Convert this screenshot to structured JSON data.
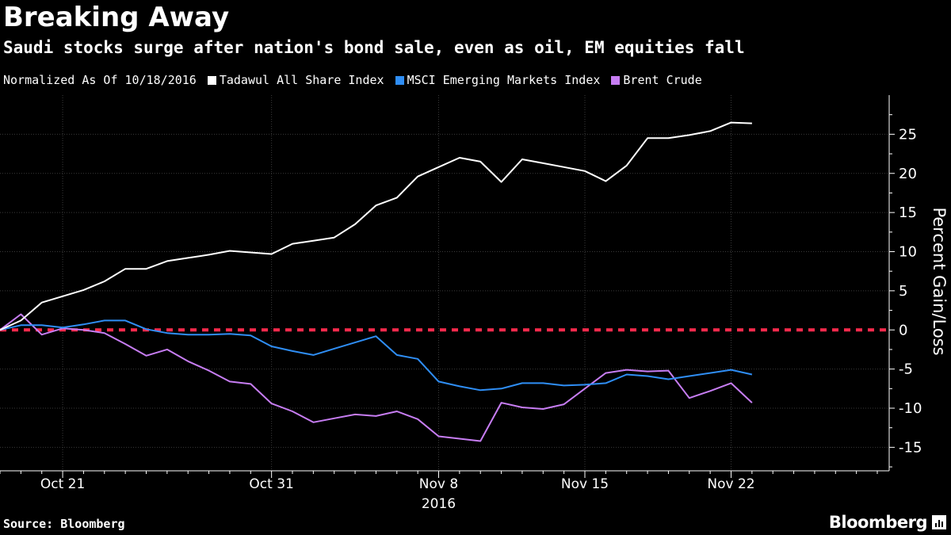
{
  "header": {
    "title": "Breaking Away",
    "subtitle": "Saudi stocks surge after nation's bond sale, even as oil, EM equities fall"
  },
  "legend": {
    "note": "Normalized As Of 10/18/2016",
    "items": [
      {
        "label": "Tadawul All Share Index",
        "color": "#ffffff"
      },
      {
        "label": "MSCI Emerging Markets Index",
        "color": "#2f8ef5"
      },
      {
        "label": "Brent Crude",
        "color": "#c77df3"
      }
    ]
  },
  "footer": {
    "source": "Source: Bloomberg",
    "brand": "Bloomberg"
  },
  "chart_data": {
    "type": "line",
    "title": "Breaking Away",
    "subtitle": "Saudi stocks surge after nation's bond sale, even as oil, EM equities fall",
    "ylabel": "Percent Gain/Loss",
    "xlabel": "",
    "x_year_label": "2016",
    "ylim": [
      -18,
      30
    ],
    "yticks": [
      -15,
      -10,
      -5,
      0,
      5,
      10,
      15,
      20,
      25
    ],
    "ytick_labels": [
      "-15",
      "-10",
      "-5",
      "0",
      "5",
      "10",
      "15",
      "20",
      "25"
    ],
    "xlim": [
      "2016-10-18",
      "2016-11-29"
    ],
    "xticks": [
      "2016-10-21",
      "2016-10-31",
      "2016-11-08",
      "2016-11-15",
      "2016-11-22"
    ],
    "xtick_labels": [
      "Oct 21",
      "Oct 31",
      "Nov 8",
      "Nov 15",
      "Nov 22"
    ],
    "grid": true,
    "legend_position": "top-left",
    "zero_line": {
      "value": 0,
      "color": "#ff2a4d",
      "style": "dashed"
    },
    "x": [
      "2016-10-18",
      "2016-10-19",
      "2016-10-20",
      "2016-10-21",
      "2016-10-22",
      "2016-10-23",
      "2016-10-24",
      "2016-10-25",
      "2016-10-26",
      "2016-10-27",
      "2016-10-28",
      "2016-10-29",
      "2016-10-30",
      "2016-10-31",
      "2016-11-01",
      "2016-11-02",
      "2016-11-03",
      "2016-11-04",
      "2016-11-05",
      "2016-11-06",
      "2016-11-07",
      "2016-11-08",
      "2016-11-09",
      "2016-11-10",
      "2016-11-11",
      "2016-11-12",
      "2016-11-13",
      "2016-11-14",
      "2016-11-15",
      "2016-11-16",
      "2016-11-17",
      "2016-11-18",
      "2016-11-19",
      "2016-11-20",
      "2016-11-21",
      "2016-11-22",
      "2016-11-23",
      "2016-11-24",
      "2016-11-25",
      "2016-11-26",
      "2016-11-27",
      "2016-11-28"
    ],
    "series": [
      {
        "name": "Tadawul All Share Index",
        "color": "#ffffff",
        "values": [
          0,
          1.2,
          3.5,
          4.3,
          5.1,
          6.2,
          7.8,
          7.8,
          8.8,
          9.2,
          9.6,
          10.1,
          9.9,
          9.7,
          11.0,
          11.4,
          11.8,
          13.5,
          15.9,
          16.9,
          19.6,
          20.8,
          22.0,
          21.5,
          18.9,
          21.8,
          21.3,
          20.8,
          20.3,
          19.0,
          21.0,
          24.5,
          24.5,
          24.9,
          25.4,
          26.5,
          26.4,
          null,
          null,
          null,
          null,
          null
        ]
      },
      {
        "name": "MSCI Emerging Markets Index",
        "color": "#2f8ef5",
        "values": [
          0,
          0.6,
          0.6,
          0.3,
          0.7,
          1.2,
          1.2,
          0.1,
          -0.4,
          -0.6,
          -0.6,
          -0.5,
          -0.7,
          -2.1,
          -2.7,
          -3.2,
          -2.4,
          -1.6,
          -0.8,
          -3.2,
          -3.7,
          -6.6,
          -7.2,
          -7.7,
          -7.5,
          -6.8,
          -6.8,
          -7.1,
          -7.0,
          -6.8,
          -5.7,
          -5.9,
          -6.3,
          -5.9,
          -5.5,
          -5.1,
          -5.7,
          null,
          null,
          null,
          null,
          null
        ]
      },
      {
        "name": "Brent Crude",
        "color": "#c77df3",
        "values": [
          0,
          2.0,
          -0.6,
          0.2,
          0,
          -0.4,
          -1.8,
          -3.3,
          -2.5,
          -4.0,
          -5.2,
          -6.6,
          -6.9,
          -9.4,
          -10.4,
          -11.8,
          -11.3,
          -10.8,
          -11.0,
          -10.4,
          -11.4,
          -13.6,
          -13.9,
          -14.2,
          -9.3,
          -9.9,
          -10.1,
          -9.5,
          -7.5,
          -5.5,
          -5.1,
          -5.3,
          -5.2,
          -8.7,
          -7.8,
          -6.8,
          -9.3,
          null,
          null,
          null,
          null,
          null
        ]
      }
    ]
  }
}
